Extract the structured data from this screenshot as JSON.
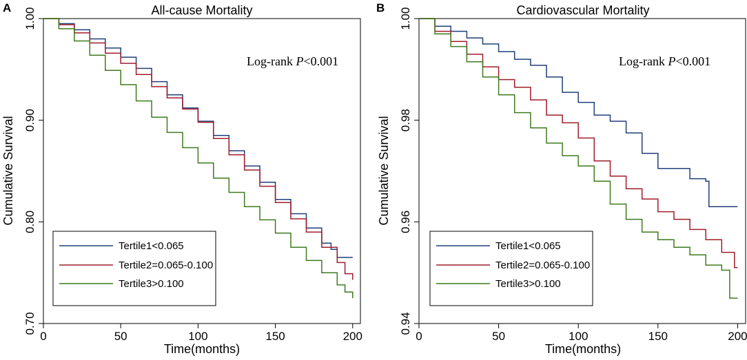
{
  "chart_data": [
    {
      "panel_label": "A",
      "type": "line",
      "title": "All-cause Mortality",
      "xlabel": "Time(months)",
      "ylabel": "Cumulative Survival",
      "xlim": [
        0,
        205
      ],
      "ylim": [
        0.7,
        1.0
      ],
      "xticks": [
        0,
        50,
        100,
        150,
        200
      ],
      "xtick_labels": [
        "0",
        "50",
        "100",
        "150",
        "200"
      ],
      "yticks": [
        0.7,
        0.8,
        0.9,
        1.0
      ],
      "ytick_labels": [
        "0.70",
        "0.80",
        "0.90",
        "1.00"
      ],
      "annotation": {
        "prefix": "Log-rank ",
        "italic": "P",
        "suffix": "<0.001"
      },
      "legend_position": "bottom-left",
      "series": [
        {
          "name": "Tertile1<0.065",
          "color": "#1f3f7a",
          "x": [
            0,
            10,
            20,
            30,
            40,
            50,
            60,
            70,
            80,
            90,
            100,
            110,
            120,
            130,
            140,
            150,
            160,
            170,
            180,
            186,
            190,
            200
          ],
          "y": [
            1.0,
            0.995,
            0.989,
            0.98,
            0.971,
            0.962,
            0.951,
            0.938,
            0.925,
            0.912,
            0.899,
            0.885,
            0.87,
            0.855,
            0.839,
            0.822,
            0.808,
            0.794,
            0.779,
            0.773,
            0.765,
            0.765
          ]
        },
        {
          "name": "Tertile2=0.065-0.100",
          "color": "#a01c2a",
          "x": [
            0,
            10,
            20,
            30,
            40,
            50,
            60,
            70,
            80,
            90,
            100,
            110,
            120,
            130,
            140,
            150,
            160,
            170,
            180,
            190,
            195,
            200
          ],
          "y": [
            1.0,
            0.994,
            0.986,
            0.976,
            0.966,
            0.956,
            0.945,
            0.933,
            0.922,
            0.911,
            0.898,
            0.882,
            0.866,
            0.851,
            0.835,
            0.819,
            0.803,
            0.79,
            0.775,
            0.76,
            0.749,
            0.743
          ]
        },
        {
          "name": "Tertile3>0.100",
          "color": "#3d7a1c",
          "x": [
            0,
            10,
            20,
            30,
            40,
            50,
            60,
            70,
            80,
            90,
            100,
            110,
            120,
            130,
            140,
            150,
            160,
            170,
            180,
            190,
            195,
            200
          ],
          "y": [
            1.0,
            0.99,
            0.978,
            0.964,
            0.949,
            0.935,
            0.919,
            0.903,
            0.888,
            0.873,
            0.858,
            0.843,
            0.829,
            0.815,
            0.802,
            0.789,
            0.775,
            0.762,
            0.75,
            0.738,
            0.731,
            0.725
          ]
        }
      ]
    },
    {
      "panel_label": "B",
      "type": "line",
      "title": "Cardiovascular Mortality",
      "xlabel": "Time(months)",
      "ylabel": "Cumulative Survival",
      "xlim": [
        0,
        205
      ],
      "ylim": [
        0.94,
        1.0
      ],
      "xticks": [
        0,
        50,
        100,
        150,
        200
      ],
      "xtick_labels": [
        "0",
        "50",
        "100",
        "150",
        "200"
      ],
      "yticks": [
        0.94,
        0.96,
        0.98,
        1.0
      ],
      "ytick_labels": [
        "0.94",
        "0.96",
        "0.98",
        "1.00"
      ],
      "annotation": {
        "prefix": "Log-rank ",
        "italic": "P",
        "suffix": "<0.001"
      },
      "legend_position": "bottom-left",
      "series": [
        {
          "name": "Tertile1<0.065",
          "color": "#1f3f7a",
          "x": [
            0,
            10,
            20,
            30,
            40,
            50,
            60,
            70,
            80,
            90,
            100,
            110,
            120,
            130,
            140,
            150,
            160,
            170,
            180,
            182,
            200
          ],
          "y": [
            1.0,
            0.9985,
            0.9975,
            0.9962,
            0.995,
            0.9935,
            0.992,
            0.9908,
            0.9885,
            0.9855,
            0.9835,
            0.981,
            0.9798,
            0.9775,
            0.9735,
            0.9705,
            0.9705,
            0.9685,
            0.968,
            0.963,
            0.963
          ]
        },
        {
          "name": "Tertile2=0.065-0.100",
          "color": "#a01c2a",
          "x": [
            0,
            10,
            20,
            30,
            40,
            50,
            60,
            70,
            80,
            90,
            100,
            110,
            120,
            130,
            140,
            150,
            160,
            170,
            180,
            190,
            198,
            200
          ],
          "y": [
            1.0,
            0.9975,
            0.9955,
            0.993,
            0.9905,
            0.988,
            0.9865,
            0.984,
            0.981,
            0.9795,
            0.9765,
            0.972,
            0.969,
            0.9665,
            0.9645,
            0.962,
            0.9605,
            0.9585,
            0.9565,
            0.954,
            0.951,
            0.951
          ]
        },
        {
          "name": "Tertile3>0.100",
          "color": "#3d7a1c",
          "x": [
            0,
            10,
            20,
            30,
            40,
            50,
            60,
            70,
            80,
            90,
            100,
            110,
            120,
            130,
            140,
            150,
            160,
            170,
            180,
            190,
            195,
            200
          ],
          "y": [
            1.0,
            0.997,
            0.9945,
            0.9915,
            0.9885,
            0.985,
            0.9815,
            0.9785,
            0.9755,
            0.973,
            0.971,
            0.968,
            0.9635,
            0.9605,
            0.958,
            0.9565,
            0.955,
            0.9535,
            0.9515,
            0.9505,
            0.945,
            0.945
          ]
        }
      ]
    }
  ]
}
